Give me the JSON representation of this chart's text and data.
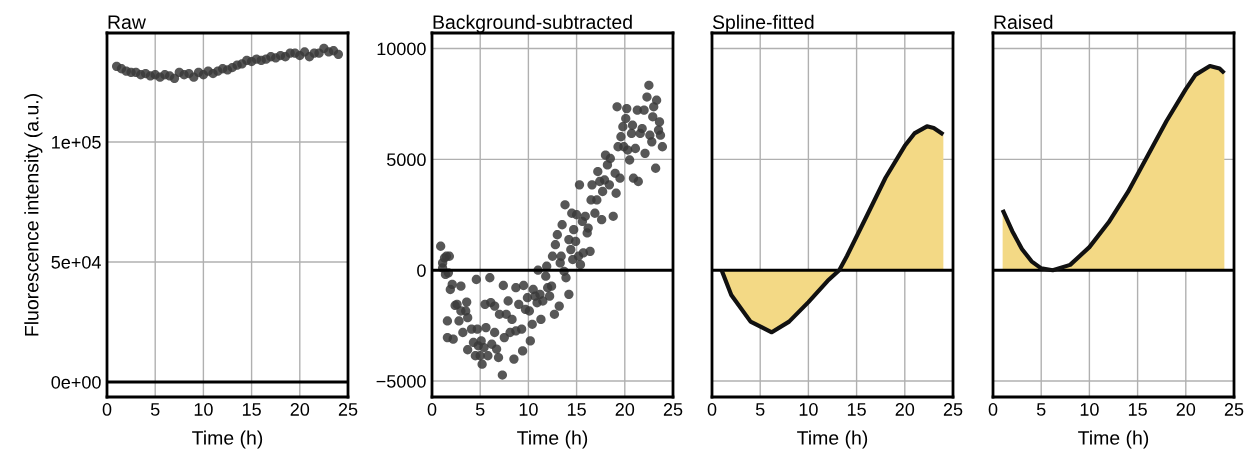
{
  "chart_data": [
    {
      "type": "scatter",
      "title": "Raw",
      "xlabel": "Time (h)",
      "ylabel": "Fluorescence intensity (a.u.)",
      "xlim": [
        0,
        25
      ],
      "xticks": [
        0,
        5,
        10,
        15,
        20,
        25
      ],
      "ylim": [
        -6250,
        145400
      ],
      "yticks": [
        {
          "value": 0,
          "label": "0e+00"
        },
        {
          "value": 50000,
          "label": "5e+04"
        },
        {
          "value": 100000,
          "label": "1e+05"
        }
      ],
      "grid": true,
      "marker": "circle",
      "ref_lines": [
        {
          "axis": "y",
          "value": 0,
          "color": "#000000"
        }
      ],
      "series": [
        {
          "color": "#3a3a3a",
          "x": [
            1,
            1.5,
            2,
            2.5,
            3,
            3.5,
            4,
            4.5,
            5,
            5.5,
            6,
            6.5,
            7,
            7.5,
            8,
            8.5,
            9,
            9.5,
            10,
            10.5,
            11,
            11.5,
            12,
            12.5,
            13,
            13.5,
            14,
            14.5,
            15,
            15.5,
            16,
            16.5,
            17,
            17.5,
            18,
            18.5,
            19,
            19.5,
            20,
            20.5,
            21,
            21.5,
            22,
            22.5,
            23,
            23.5,
            24
          ],
          "values": [
            131500,
            130500,
            129500,
            129000,
            129000,
            128000,
            128500,
            127500,
            128000,
            127000,
            128000,
            127500,
            126500,
            129000,
            128000,
            128500,
            127000,
            129000,
            128000,
            129500,
            128500,
            129500,
            130500,
            130000,
            131000,
            132000,
            132500,
            134000,
            133500,
            134500,
            134000,
            134500,
            135500,
            135000,
            136000,
            135500,
            137000,
            137000,
            136000,
            137500,
            135500,
            137000,
            137000,
            139000,
            137500,
            138000,
            136500
          ]
        }
      ]
    },
    {
      "type": "scatter",
      "title": "Background-subtracted",
      "xlabel": "Time (h)",
      "xlim": [
        0,
        25
      ],
      "xticks": [
        0,
        5,
        10,
        15,
        20,
        25
      ],
      "ylim": [
        -5720,
        10700
      ],
      "yticks": [
        {
          "value": -5000,
          "label": "−5000"
        },
        0,
        5000,
        10000
      ],
      "grid": true,
      "marker": "circle",
      "ref_lines": [
        {
          "axis": "y",
          "value": 0,
          "color": "#000000"
        }
      ],
      "series": [
        {
          "color": "#3a3a3a",
          "x": [
            0.9,
            1.1,
            1.3,
            1.5,
            1.8,
            1.1,
            1.4,
            1.7,
            1.6,
            1.6,
            1.9,
            2.1,
            2.2,
            2.4,
            2.6,
            2.8,
            3.0,
            3.0,
            3.2,
            3.5,
            3.6,
            3.7,
            3.7,
            4.1,
            4.3,
            4.5,
            4.6,
            4.7,
            4.8,
            5.0,
            5.2,
            5.1,
            5.4,
            5.5,
            5.6,
            5.8,
            6.0,
            6.1,
            6.2,
            6.5,
            6.5,
            6.7,
            6.9,
            7.0,
            7.3,
            7.4,
            7.5,
            7.7,
            7.9,
            8.1,
            8.3,
            8.5,
            8.7,
            8.7,
            9.0,
            9.3,
            9.4,
            9.5,
            9.7,
            9.9,
            10.1,
            10.2,
            10.4,
            10.5,
            10.7,
            10.9,
            11.0,
            11.2,
            11.3,
            11.5,
            11.8,
            11.9,
            12.0,
            12.2,
            12.4,
            12.5,
            12.7,
            12.8,
            13.0,
            13.2,
            13.3,
            13.4,
            13.5,
            13.7,
            13.8,
            13.9,
            14.2,
            14.2,
            14.4,
            14.5,
            14.6,
            14.7,
            14.9,
            15.0,
            15.2,
            15.3,
            15.4,
            15.6,
            15.7,
            15.9,
            16.1,
            16.2,
            16.4,
            16.5,
            16.6,
            16.9,
            17.1,
            17.2,
            17.4,
            17.6,
            17.7,
            17.9,
            18.0,
            18.2,
            18.4,
            18.5,
            18.8,
            19.0,
            19.1,
            19.3,
            19.5,
            19.2,
            19.6,
            19.8,
            19.9,
            20.1,
            20.2,
            20.3,
            20.5,
            20.7,
            20.8,
            20.9,
            21.1,
            21.3,
            21.4,
            21.6,
            21.8,
            22.0,
            22.1,
            22.3,
            22.5,
            22.6,
            22.8,
            22.9,
            23.0,
            23.2,
            23.3,
            23.5,
            23.6,
            23.7,
            23.9
          ],
          "values": [
            1080,
            330,
            550,
            630,
            630,
            100,
            -190,
            -120,
            -2290,
            -3040,
            -870,
            -640,
            -3110,
            -1590,
            -1540,
            -2290,
            -720,
            -1840,
            -2810,
            -1840,
            -1440,
            -2140,
            -3590,
            -2660,
            -3260,
            -3860,
            -420,
            -2660,
            -3410,
            -3860,
            -4240,
            -3190,
            -3490,
            -1540,
            -2590,
            -3860,
            -340,
            -1460,
            -3340,
            -2810,
            -1620,
            -3560,
            -3940,
            -1990,
            -4730,
            -690,
            -3040,
            -1990,
            -1390,
            -2810,
            -2220,
            -4010,
            -790,
            -2740,
            -1540,
            -2660,
            -3640,
            -690,
            -1770,
            -1240,
            -1840,
            -3190,
            -2440,
            -870,
            -1170,
            -1470,
            0,
            -1090,
            -2220,
            -1390,
            -270,
            180,
            -790,
            -1170,
            -720,
            630,
            -1990,
            1150,
            1600,
            -1620,
            330,
            630,
            2050,
            -50,
            2950,
            -340,
            -1090,
            1380,
            930,
            2570,
            480,
            1830,
            1300,
            2500,
            630,
            3850,
            250,
            2200,
            780,
            2430,
            1680,
            1900,
            850,
            3170,
            3850,
            2570,
            3170,
            4450,
            4000,
            2280,
            3550,
            4070,
            5190,
            4750,
            3850,
            5040,
            2430,
            4370,
            3470,
            5570,
            4150,
            7370,
            6020,
            6470,
            5570,
            6840,
            7290,
            5420,
            4970,
            6170,
            6540,
            4150,
            5490,
            7220,
            4000,
            6170,
            6390,
            7220,
            5270,
            7810,
            8340,
            6090,
            5790,
            6920,
            7370,
            4600,
            7670,
            6320,
            6690,
            6090,
            5570
          ]
        }
      ]
    },
    {
      "type": "area",
      "title": "Spline-fitted",
      "xlabel": "Time (h)",
      "xlim": [
        0,
        25
      ],
      "xticks": [
        0,
        5,
        10,
        15,
        20,
        25
      ],
      "ylim": [
        -5720,
        10700
      ],
      "yticks": [
        -5000,
        0,
        5000,
        10000
      ],
      "tick_labels": "x",
      "grid": true,
      "ref_lines": [
        {
          "axis": "y",
          "value": 0,
          "color": "#000000"
        }
      ],
      "series": [
        {
          "type": "area",
          "color": "#f3d985",
          "x": [
            1,
            2,
            4,
            6.2,
            8,
            10,
            12,
            13.2,
            14,
            16,
            18,
            20,
            21,
            22.3,
            23,
            24
          ],
          "values": [
            0,
            -1120,
            -2320,
            -2800,
            -2320,
            -1440,
            -480,
            0,
            640,
            2400,
            4170,
            5610,
            6170,
            6490,
            6410,
            6120
          ]
        }
      ]
    },
    {
      "type": "area",
      "title": "Raised",
      "xlabel": "Time (h)",
      "xlim": [
        0,
        25
      ],
      "xticks": [
        0,
        5,
        10,
        15,
        20,
        25
      ],
      "ylim": [
        -5720,
        10700
      ],
      "yticks": [
        -5000,
        0,
        5000,
        10000
      ],
      "tick_labels": "x",
      "grid": true,
      "ref_lines": [
        {
          "axis": "y",
          "value": 0,
          "color": "#000000"
        }
      ],
      "series": [
        {
          "type": "area",
          "color": "#f3d985",
          "x": [
            1,
            2,
            3,
            4,
            5,
            6.2,
            8,
            10,
            12,
            14,
            16,
            18,
            20,
            21,
            22.5,
            23.5,
            24
          ],
          "values": [
            2720,
            1760,
            960,
            400,
            80,
            0,
            240,
            1040,
            2160,
            3530,
            5130,
            6730,
            8170,
            8810,
            9210,
            9100,
            8890
          ]
        }
      ]
    }
  ]
}
